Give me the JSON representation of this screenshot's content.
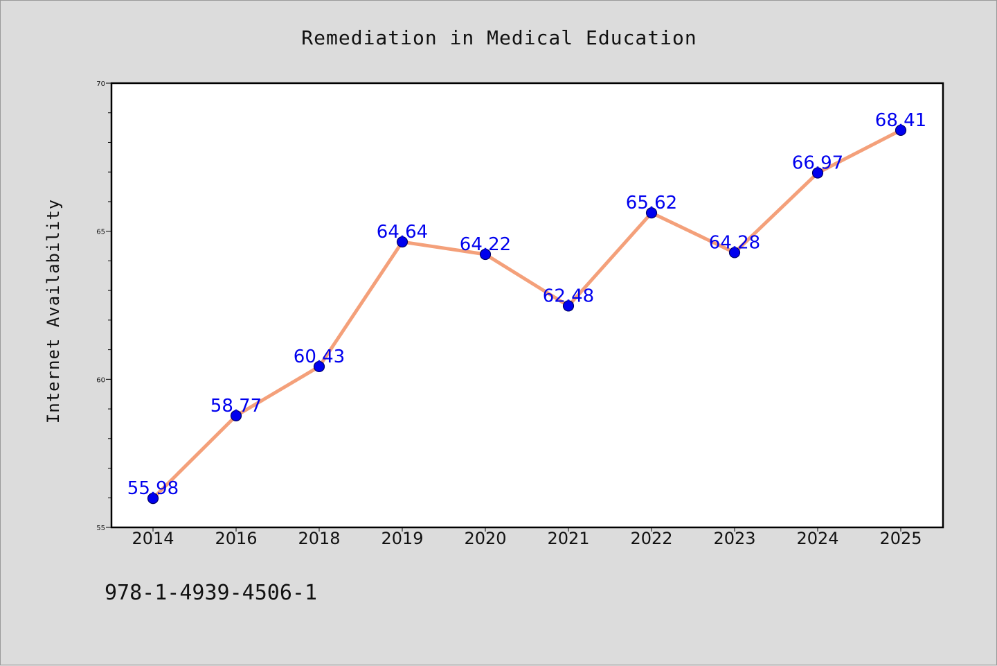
{
  "chart_data": {
    "type": "line",
    "title": "Remediation in Medical Education",
    "xlabel": "",
    "ylabel": "Internet Availability",
    "categories": [
      "2014",
      "2016",
      "2018",
      "2019",
      "2020",
      "2021",
      "2022",
      "2023",
      "2024",
      "2025"
    ],
    "series": [
      {
        "values": [
          55.98,
          58.77,
          60.43,
          64.64,
          64.22,
          62.48,
          65.62,
          64.28,
          66.97,
          68.41
        ],
        "labels": [
          "55.98",
          "58.77",
          "60.43",
          "64.64",
          "64.22",
          "62.48",
          "65.62",
          "64.28",
          "66.97",
          "68.41"
        ]
      }
    ],
    "ylim": [
      55,
      70
    ],
    "yticks": [
      "55",
      "60",
      "65",
      "70"
    ],
    "grid": false,
    "colors": {
      "line": "#f4a07a",
      "marker": "#0000ee",
      "marker_edge": "#000066",
      "data_label": "#0000ee",
      "plot_background": "#ffffff",
      "figure_background": "#dcdcdc"
    }
  },
  "footer": {
    "isbn": "978-1-4939-4506-1"
  }
}
